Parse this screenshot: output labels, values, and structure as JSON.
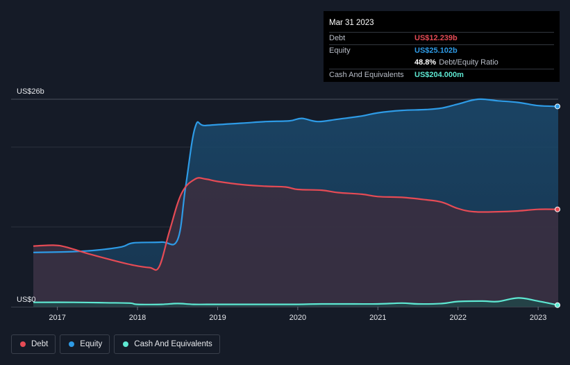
{
  "tooltip": {
    "date": "Mar 31 2023",
    "rows": [
      {
        "label": "Debt",
        "value": "US$12.239b",
        "color": "#e64b55"
      },
      {
        "label": "Equity",
        "value": "US$25.102b",
        "color": "#2e9be6"
      }
    ],
    "ratio": {
      "value": "48.8%",
      "suffix": "Debt/Equity Ratio"
    },
    "cash": {
      "label": "Cash And Equivalents",
      "value": "US$204.000m",
      "color": "#5ee8d2"
    }
  },
  "legend": [
    {
      "label": "Debt",
      "color": "#e64b55"
    },
    {
      "label": "Equity",
      "color": "#2e9be6"
    },
    {
      "label": "Cash And Equivalents",
      "color": "#5ee8d2"
    }
  ],
  "chart_data": {
    "type": "area",
    "y_top_label": "US$26b",
    "y_bottom_label": "US$0",
    "ylim": [
      0,
      26
    ],
    "xlim": [
      2016.7,
      2023.25
    ],
    "x_ticks": [
      2017,
      2018,
      2019,
      2020,
      2021,
      2022,
      2023
    ],
    "x_tick_labels": [
      "2017",
      "2018",
      "2019",
      "2020",
      "2021",
      "2022",
      "2023"
    ],
    "gridlines": [
      10,
      20
    ],
    "series": [
      {
        "name": "Equity",
        "color": "#2e9be6",
        "x": [
          2016.7,
          2017.2,
          2017.5,
          2017.8,
          2017.95,
          2018.3,
          2018.5,
          2018.6,
          2018.72,
          2018.85,
          2019.3,
          2019.6,
          2019.9,
          2020.05,
          2020.25,
          2020.5,
          2020.8,
          2021.0,
          2021.3,
          2021.6,
          2021.8,
          2022.0,
          2022.25,
          2022.5,
          2022.75,
          2023.0,
          2023.25
        ],
        "y": [
          6.8,
          6.9,
          7.1,
          7.5,
          8.0,
          8.1,
          8.4,
          15.0,
          22.5,
          22.7,
          23.0,
          23.2,
          23.3,
          23.6,
          23.2,
          23.5,
          23.9,
          24.3,
          24.6,
          24.7,
          24.9,
          25.4,
          26.0,
          25.8,
          25.6,
          25.2,
          25.1
        ]
      },
      {
        "name": "Debt",
        "color": "#e64b55",
        "x": [
          2016.7,
          2016.95,
          2017.1,
          2017.4,
          2017.7,
          2017.95,
          2018.15,
          2018.27,
          2018.4,
          2018.55,
          2018.72,
          2018.85,
          2019.0,
          2019.3,
          2019.6,
          2019.85,
          2020.0,
          2020.3,
          2020.5,
          2020.8,
          2021.0,
          2021.3,
          2021.6,
          2021.8,
          2022.0,
          2022.2,
          2022.5,
          2022.75,
          2023.0,
          2023.25
        ],
        "y": [
          7.6,
          7.7,
          7.5,
          6.6,
          5.8,
          5.2,
          4.9,
          5.0,
          9.5,
          14.2,
          16.0,
          16.0,
          15.7,
          15.3,
          15.1,
          15.0,
          14.7,
          14.6,
          14.3,
          14.1,
          13.8,
          13.7,
          13.4,
          13.1,
          12.3,
          11.9,
          11.9,
          12.0,
          12.2,
          12.2
        ]
      },
      {
        "name": "Cash And Equivalents",
        "color": "#5ee8d2",
        "x": [
          2016.7,
          2017.2,
          2017.6,
          2017.9,
          2018.0,
          2018.3,
          2018.5,
          2018.7,
          2019.0,
          2019.5,
          2020.0,
          2020.3,
          2020.7,
          2021.0,
          2021.3,
          2021.5,
          2021.8,
          2022.0,
          2022.3,
          2022.5,
          2022.75,
          2023.0,
          2023.25
        ],
        "y": [
          0.55,
          0.55,
          0.5,
          0.45,
          0.3,
          0.3,
          0.4,
          0.3,
          0.3,
          0.3,
          0.3,
          0.35,
          0.35,
          0.35,
          0.45,
          0.35,
          0.4,
          0.65,
          0.7,
          0.65,
          1.1,
          0.7,
          0.2
        ]
      }
    ]
  }
}
